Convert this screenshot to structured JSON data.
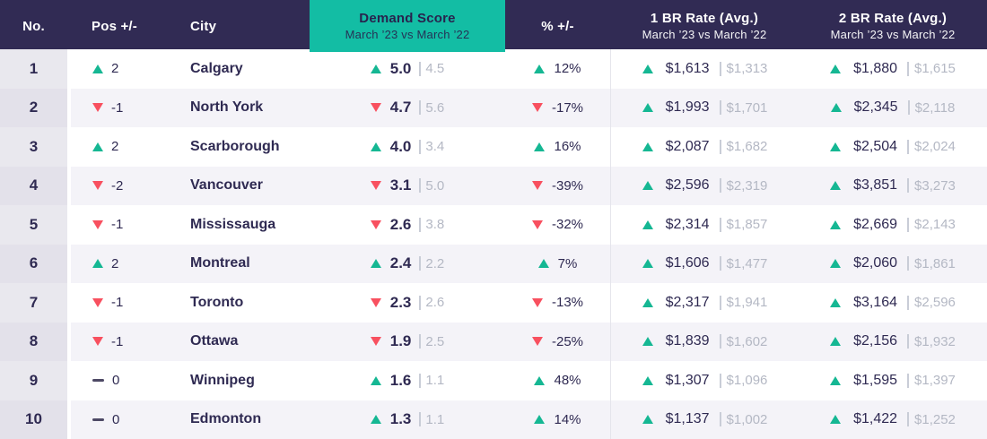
{
  "colors": {
    "header_bg": "#312b54",
    "accent_teal": "#13bda4",
    "up_green": "#15b793",
    "down_red": "#f8505f",
    "navy_text": "#2f2a52",
    "muted_old_value": "#b4b8c4"
  },
  "icons": {
    "up": "triangle-up-icon",
    "down": "triangle-down-icon",
    "flat": "dash-icon"
  },
  "table": {
    "header": {
      "no": "No.",
      "pos": "Pos +/-",
      "city": "City",
      "demand": {
        "title": "Demand Score",
        "subtitle": "March ’23 vs March ’22"
      },
      "pct": "% +/-",
      "br1": {
        "title": "1 BR Rate (Avg.)",
        "subtitle": "March ’23 vs March ’22"
      },
      "br2": {
        "title": "2 BR Rate (Avg.)",
        "subtitle": "March ’23 vs March ’22"
      }
    },
    "rows": [
      {
        "no": "1",
        "pos_dir": "up",
        "pos": "2",
        "city": "Calgary",
        "demand_dir": "up",
        "demand_new": "5.0",
        "demand_old": "4.5",
        "pct_dir": "up",
        "pct": "12%",
        "br1_dir": "up",
        "br1_new": "$1,613",
        "br1_old": "$1,313",
        "br2_dir": "up",
        "br2_new": "$1,880",
        "br2_old": "$1,615"
      },
      {
        "no": "2",
        "pos_dir": "down",
        "pos": "-1",
        "city": "North York",
        "demand_dir": "down",
        "demand_new": "4.7",
        "demand_old": "5.6",
        "pct_dir": "down",
        "pct": "-17%",
        "br1_dir": "up",
        "br1_new": "$1,993",
        "br1_old": "$1,701",
        "br2_dir": "up",
        "br2_new": "$2,345",
        "br2_old": "$2,118"
      },
      {
        "no": "3",
        "pos_dir": "up",
        "pos": "2",
        "city": "Scarborough",
        "demand_dir": "up",
        "demand_new": "4.0",
        "demand_old": "3.4",
        "pct_dir": "up",
        "pct": "16%",
        "br1_dir": "up",
        "br1_new": "$2,087",
        "br1_old": "$1,682",
        "br2_dir": "up",
        "br2_new": "$2,504",
        "br2_old": "$2,024"
      },
      {
        "no": "4",
        "pos_dir": "down",
        "pos": "-2",
        "city": "Vancouver",
        "demand_dir": "down",
        "demand_new": "3.1",
        "demand_old": "5.0",
        "pct_dir": "down",
        "pct": "-39%",
        "br1_dir": "up",
        "br1_new": "$2,596",
        "br1_old": "$2,319",
        "br2_dir": "up",
        "br2_new": "$3,851",
        "br2_old": "$3,273"
      },
      {
        "no": "5",
        "pos_dir": "down",
        "pos": "-1",
        "city": "Mississauga",
        "demand_dir": "down",
        "demand_new": "2.6",
        "demand_old": "3.8",
        "pct_dir": "down",
        "pct": "-32%",
        "br1_dir": "up",
        "br1_new": "$2,314",
        "br1_old": "$1,857",
        "br2_dir": "up",
        "br2_new": "$2,669",
        "br2_old": "$2,143"
      },
      {
        "no": "6",
        "pos_dir": "up",
        "pos": "2",
        "city": "Montreal",
        "demand_dir": "up",
        "demand_new": "2.4",
        "demand_old": "2.2",
        "pct_dir": "up",
        "pct": "7%",
        "br1_dir": "up",
        "br1_new": "$1,606",
        "br1_old": "$1,477",
        "br2_dir": "up",
        "br2_new": "$2,060",
        "br2_old": "$1,861"
      },
      {
        "no": "7",
        "pos_dir": "down",
        "pos": "-1",
        "city": "Toronto",
        "demand_dir": "down",
        "demand_new": "2.3",
        "demand_old": "2.6",
        "pct_dir": "down",
        "pct": "-13%",
        "br1_dir": "up",
        "br1_new": "$2,317",
        "br1_old": "$1,941",
        "br2_dir": "up",
        "br2_new": "$3,164",
        "br2_old": "$2,596"
      },
      {
        "no": "8",
        "pos_dir": "down",
        "pos": "-1",
        "city": "Ottawa",
        "demand_dir": "down",
        "demand_new": "1.9",
        "demand_old": "2.5",
        "pct_dir": "down",
        "pct": "-25%",
        "br1_dir": "up",
        "br1_new": "$1,839",
        "br1_old": "$1,602",
        "br2_dir": "up",
        "br2_new": "$2,156",
        "br2_old": "$1,932"
      },
      {
        "no": "9",
        "pos_dir": "flat",
        "pos": "0",
        "city": "Winnipeg",
        "demand_dir": "up",
        "demand_new": "1.6",
        "demand_old": "1.1",
        "pct_dir": "up",
        "pct": "48%",
        "br1_dir": "up",
        "br1_new": "$1,307",
        "br1_old": "$1,096",
        "br2_dir": "up",
        "br2_new": "$1,595",
        "br2_old": "$1,397"
      },
      {
        "no": "10",
        "pos_dir": "flat",
        "pos": "0",
        "city": "Edmonton",
        "demand_dir": "up",
        "demand_new": "1.3",
        "demand_old": "1.1",
        "pct_dir": "up",
        "pct": "14%",
        "br1_dir": "up",
        "br1_new": "$1,137",
        "br1_old": "$1,002",
        "br2_dir": "up",
        "br2_new": "$1,422",
        "br2_old": "$1,252"
      }
    ]
  },
  "chart_data": {
    "type": "table",
    "title": "Demand Score March ’23 vs March ’22",
    "columns": [
      "No.",
      "Pos +/-",
      "City",
      "Demand Score Mar ’23",
      "Demand Score Mar ’22",
      "% +/-",
      "1 BR Rate (Avg.) Mar ’23",
      "1 BR Rate (Avg.) Mar ’22",
      "2 BR Rate (Avg.) Mar ’23",
      "2 BR Rate (Avg.) Mar ’22"
    ],
    "rows": [
      [
        1,
        2,
        "Calgary",
        5.0,
        4.5,
        "12%",
        1613,
        1313,
        1880,
        1615
      ],
      [
        2,
        -1,
        "North York",
        4.7,
        5.6,
        "-17%",
        1993,
        1701,
        2345,
        2118
      ],
      [
        3,
        2,
        "Scarborough",
        4.0,
        3.4,
        "16%",
        2087,
        1682,
        2504,
        2024
      ],
      [
        4,
        -2,
        "Vancouver",
        3.1,
        5.0,
        "-39%",
        2596,
        2319,
        3851,
        3273
      ],
      [
        5,
        -1,
        "Mississauga",
        2.6,
        3.8,
        "-32%",
        2314,
        1857,
        2669,
        2143
      ],
      [
        6,
        2,
        "Montreal",
        2.4,
        2.2,
        "7%",
        1606,
        1477,
        2060,
        1861
      ],
      [
        7,
        -1,
        "Toronto",
        2.3,
        2.6,
        "-13%",
        2317,
        1941,
        3164,
        2596
      ],
      [
        8,
        -1,
        "Ottawa",
        1.9,
        2.5,
        "-25%",
        1839,
        1602,
        2156,
        1932
      ],
      [
        9,
        0,
        "Winnipeg",
        1.6,
        1.1,
        "48%",
        1307,
        1096,
        1595,
        1397
      ],
      [
        10,
        0,
        "Edmonton",
        1.3,
        1.1,
        "14%",
        1137,
        1002,
        1422,
        1252
      ]
    ]
  }
}
